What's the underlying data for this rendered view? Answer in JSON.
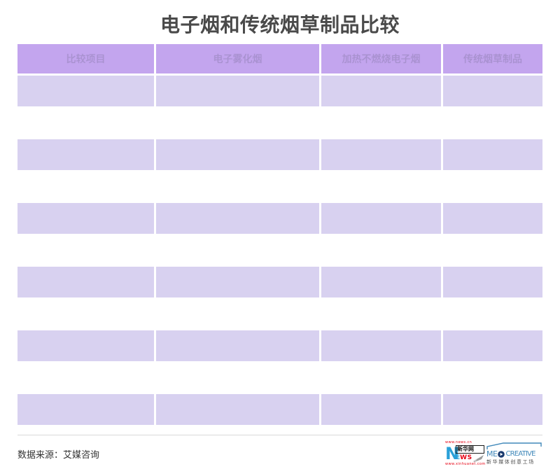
{
  "title": "电子烟和传统烟草制品比较",
  "table": {
    "headers": [
      "比较项目",
      "电子雾化烟",
      "加热不燃烧电子烟",
      "传统烟草制品"
    ],
    "rows": [
      [
        "",
        "",
        "",
        ""
      ],
      [
        "",
        "",
        "",
        ""
      ],
      [
        "",
        "",
        "",
        ""
      ],
      [
        "",
        "",
        "",
        ""
      ],
      [
        "",
        "",
        "",
        ""
      ],
      [
        "",
        "",
        "",
        ""
      ]
    ]
  },
  "chart_data": {
    "type": "table",
    "title": "电子烟和传统烟草制品比较",
    "columns": [
      "比较项目",
      "电子雾化烟",
      "加热不燃烧电子烟",
      "传统烟草制品"
    ],
    "rows": [
      [
        "",
        "",
        "",
        ""
      ],
      [
        "",
        "",
        "",
        ""
      ],
      [
        "",
        "",
        "",
        ""
      ],
      [
        "",
        "",
        "",
        ""
      ],
      [
        "",
        "",
        "",
        ""
      ],
      [
        "",
        "",
        "",
        ""
      ]
    ],
    "source": "数据来源：艾媒咨询"
  },
  "footer": {
    "source": "数据来源：艾媒咨询"
  },
  "logos": {
    "xinhua": {
      "url_top": "www.news.cn",
      "n_letter": "N",
      "box_text": "新华网",
      "ews_e": "E",
      "ews_ws": "WS",
      "url_bottom": "www.xinhuanet.com"
    },
    "medcreative": {
      "me": "ME",
      "creative": "CREATIVE",
      "subtitle": "新华媒体创意工场"
    }
  },
  "colors": {
    "header_bg": "#c3a5ee",
    "header_text": "#a791cd",
    "row_bg": "#d8d1f0",
    "title_text": "#4a4a4a",
    "xinhua_blue": "#29a0d8",
    "xinhua_red": "#e60012",
    "med_blue": "#4189ba",
    "med_navy": "#1a3a6e"
  }
}
